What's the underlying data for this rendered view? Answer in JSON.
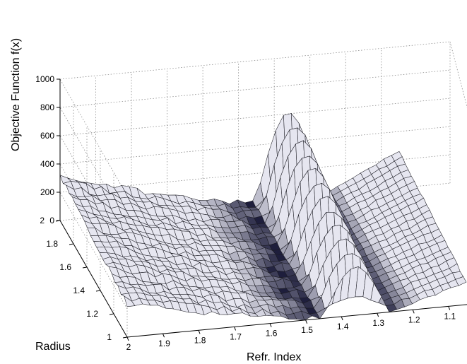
{
  "chart_data": {
    "type": "surface",
    "title": "",
    "zlabel": "Objective Function f(x)",
    "xlabel": "Refr. Index",
    "ylabel": "Radius",
    "zlim": [
      0,
      1000
    ],
    "xlim": [
      1.05,
      2.0
    ],
    "ylim": [
      1.0,
      2.0
    ],
    "z_ticks": [
      "0",
      "200",
      "400",
      "600",
      "800",
      "1000"
    ],
    "x_ticks": [
      "2",
      "1.9",
      "1.8",
      "1.7",
      "1.6",
      "1.5",
      "1.4",
      "1.3",
      "1.2",
      "1.1"
    ],
    "y_ticks": [
      "1",
      "1.2",
      "1.4",
      "1.6",
      "1.8",
      "2"
    ],
    "grid": true,
    "colormap": "bone",
    "surface_description_points": [
      {
        "refr_index": 2.0,
        "radius": 2.0,
        "f": 330
      },
      {
        "refr_index": 2.0,
        "radius": 1.0,
        "f": 110
      },
      {
        "refr_index": 1.65,
        "radius": 1.5,
        "f": 240
      },
      {
        "refr_index": 1.45,
        "radius": 1.5,
        "f": 5
      },
      {
        "refr_index": 1.37,
        "radius": 1.5,
        "f": 600
      },
      {
        "refr_index": 1.27,
        "radius": 1.5,
        "f": 5
      },
      {
        "refr_index": 1.15,
        "radius": 1.5,
        "f": 250
      }
    ]
  },
  "colors": {
    "background": "#ffffff",
    "surface_light": "#e6e6f0",
    "surface_dark": "#1e1e3c",
    "mesh": "#1a1a22"
  }
}
